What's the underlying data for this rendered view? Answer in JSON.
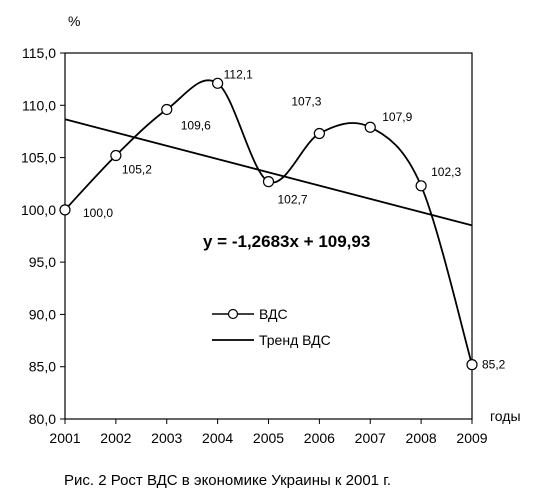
{
  "chart_data": {
    "type": "line",
    "title": "",
    "xlabel": "годы",
    "ylabel": "%",
    "ylim": [
      80,
      115
    ],
    "yticks": [
      "80,0",
      "85,0",
      "90,0",
      "95,0",
      "100,0",
      "105,0",
      "110,0",
      "115,0"
    ],
    "categories": [
      "2001",
      "2002",
      "2003",
      "2004",
      "2005",
      "2006",
      "2007",
      "2008",
      "2009"
    ],
    "series": [
      {
        "name": "ВДС",
        "values": [
          100.0,
          105.2,
          109.6,
          112.1,
          102.7,
          107.3,
          107.9,
          102.3,
          85.2
        ],
        "labels": [
          "100,0",
          "105,2",
          "109,6",
          "112,1",
          "102,7",
          "107,3",
          "107,9",
          "102,3",
          "85,2"
        ],
        "style": "smooth line with circle markers"
      },
      {
        "name": "Тренд ВДС",
        "type": "linear trend",
        "slope": -1.2683,
        "intercept": 109.93,
        "equation": "y = -1,2683x + 109,93"
      }
    ],
    "grid": false,
    "legend_position": "center-left",
    "caption": "Рис. 2  Рост ВДС в экономике Украины к 2001 г."
  },
  "colors": {
    "line": "#000000",
    "marker_fill": "#ffffff",
    "background": "#ffffff"
  }
}
